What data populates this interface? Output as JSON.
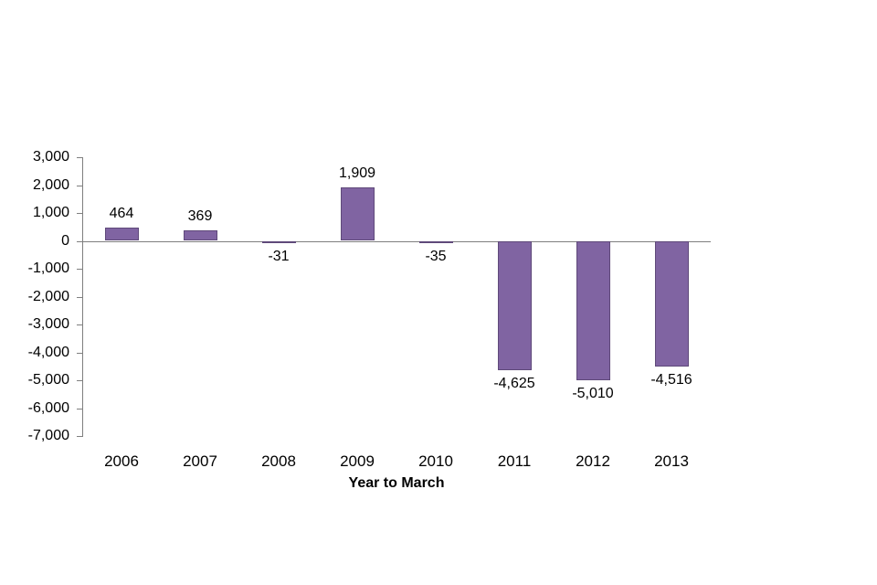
{
  "chart_data": {
    "type": "bar",
    "title": "",
    "xlabel": "Year to March",
    "ylabel": "",
    "categories": [
      "2006",
      "2007",
      "2008",
      "2009",
      "2010",
      "2011",
      "2012",
      "2013"
    ],
    "values": [
      464,
      369,
      -31,
      1909,
      -35,
      -4625,
      -5010,
      -4516
    ],
    "value_labels": [
      "464",
      "369",
      "-31",
      "1,909",
      "-35",
      "-4,625",
      "-5,010",
      "-4,516"
    ],
    "ylim": [
      -7000,
      3000
    ],
    "ytick_step": 1000,
    "y_tick_labels": [
      "3,000",
      "2,000",
      "1,000",
      "0",
      "-1,000",
      "-2,000",
      "-3,000",
      "-4,000",
      "-5,000",
      "-6,000",
      "-7,000"
    ],
    "grid": false,
    "legend": "none",
    "colors": {
      "bar_fill": "#8064A2",
      "bar_border": "#5F497A",
      "axis_line": "#7F7F7F",
      "text": "#000000",
      "background": "#FFFFFF"
    }
  }
}
